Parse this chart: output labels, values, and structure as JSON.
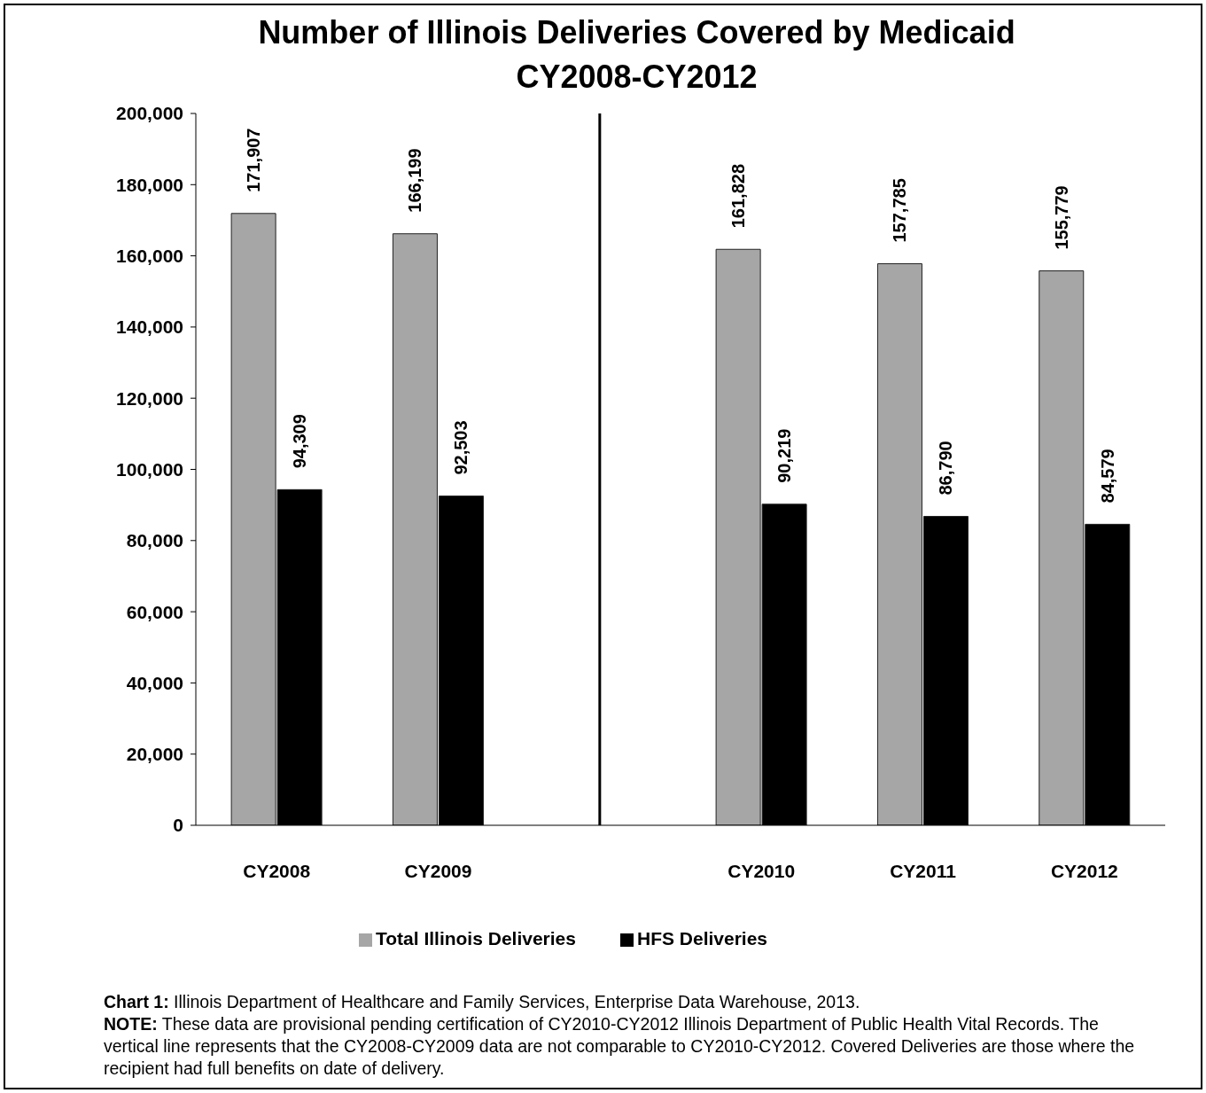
{
  "chart_data": {
    "type": "bar",
    "title": "Number of Illinois Deliveries Covered by Medicaid\nCY2008-CY2012",
    "categories": [
      "CY2008",
      "CY2009",
      null,
      "CY2010",
      "CY2011",
      "CY2012"
    ],
    "series": [
      {
        "name": "Total Illinois Deliveries",
        "color": "#a6a6a6",
        "values": [
          171907,
          166199,
          null,
          161828,
          157785,
          155779
        ],
        "value_labels": [
          "171,907",
          "166,199",
          null,
          "161,828",
          "157,785",
          "155,779"
        ]
      },
      {
        "name": "HFS Deliveries",
        "color": "#000000",
        "values": [
          94309,
          92503,
          null,
          90219,
          86790,
          84579
        ],
        "value_labels": [
          "94,309",
          "92,503",
          null,
          "90,219",
          "86,790",
          "84,579"
        ]
      }
    ],
    "ylim": [
      0,
      200000
    ],
    "yticks": [
      0,
      {
        "value": 20000,
        "label": "20,000"
      },
      {
        "value": 40000,
        "label": "40,000"
      },
      {
        "value": 60000,
        "label": "60,000"
      },
      {
        "value": 80000,
        "label": "80,000"
      },
      {
        "value": 100000,
        "label": "100,000"
      },
      {
        "value": 120000,
        "label": "120,000"
      },
      {
        "value": 140000,
        "label": "140,000"
      },
      {
        "value": 160000,
        "label": "160,000"
      },
      {
        "value": 180000,
        "label": "180,000"
      },
      {
        "value": 200000,
        "label": "200,000"
      }
    ],
    "legend": "bottom",
    "annotations": [
      "Chart 1: Illinois Department of Healthcare and Family Services, Enterprise Data Warehouse, 2013.",
      "NOTE: These data are provisional pending certification of CY2010-CY2012 Illinois Department of Public Health Vital Records. The vertical line represents that the CY2008-CY2009 data are not comparable to CY2010-CY2012. Covered Deliveries are those where the recipient had full benefits on date of delivery."
    ]
  }
}
